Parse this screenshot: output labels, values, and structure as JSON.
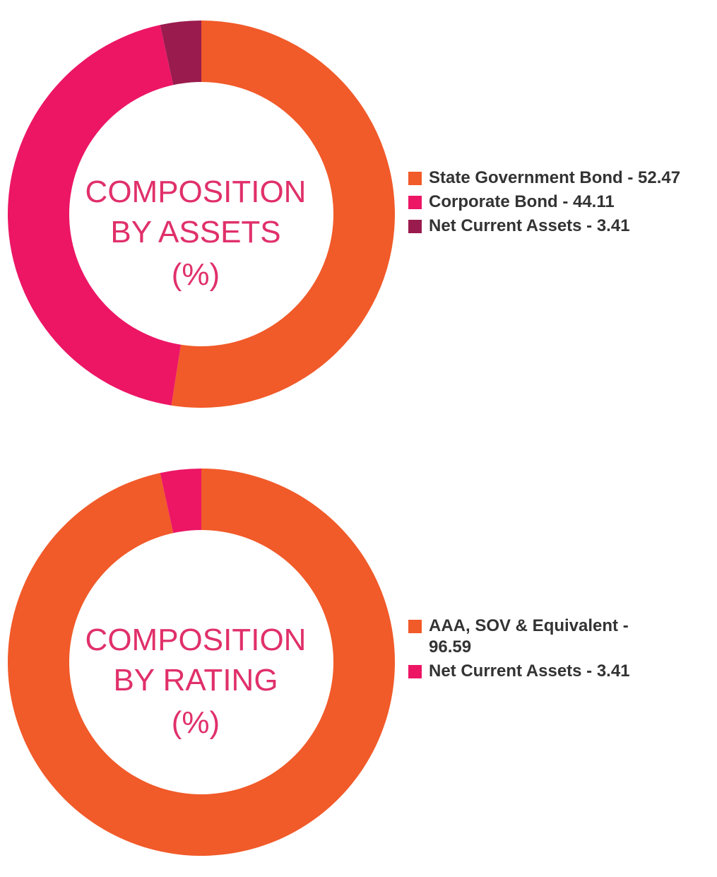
{
  "colors": {
    "orange": "#f15a29",
    "pink": "#ec1665",
    "maroon": "#9a1b4e",
    "center_text": "#e0306a",
    "legend_text": "#333333"
  },
  "chart_data": [
    {
      "type": "pie",
      "center_label": [
        "COMPOSITION",
        "BY ASSETS",
        "(%)"
      ],
      "legend_placement": "right",
      "slices": [
        {
          "label": "State Government Bond - 52.47",
          "value": 52.47,
          "color": "#f15a29"
        },
        {
          "label": "Corporate Bond - 44.11",
          "value": 44.11,
          "color": "#ec1665"
        },
        {
          "label": "Net Current Assets - 3.41",
          "value": 3.41,
          "color": "#9a1b4e"
        }
      ]
    },
    {
      "type": "pie",
      "center_label": [
        "COMPOSITION",
        "BY RATING",
        "(%)"
      ],
      "legend_placement": "right",
      "slices": [
        {
          "label": "AAA, SOV & Equivalent - 96.59",
          "value": 96.59,
          "color": "#f15a29"
        },
        {
          "label": "Net Current Assets - 3.41",
          "value": 3.41,
          "color": "#ec1665"
        }
      ]
    }
  ]
}
